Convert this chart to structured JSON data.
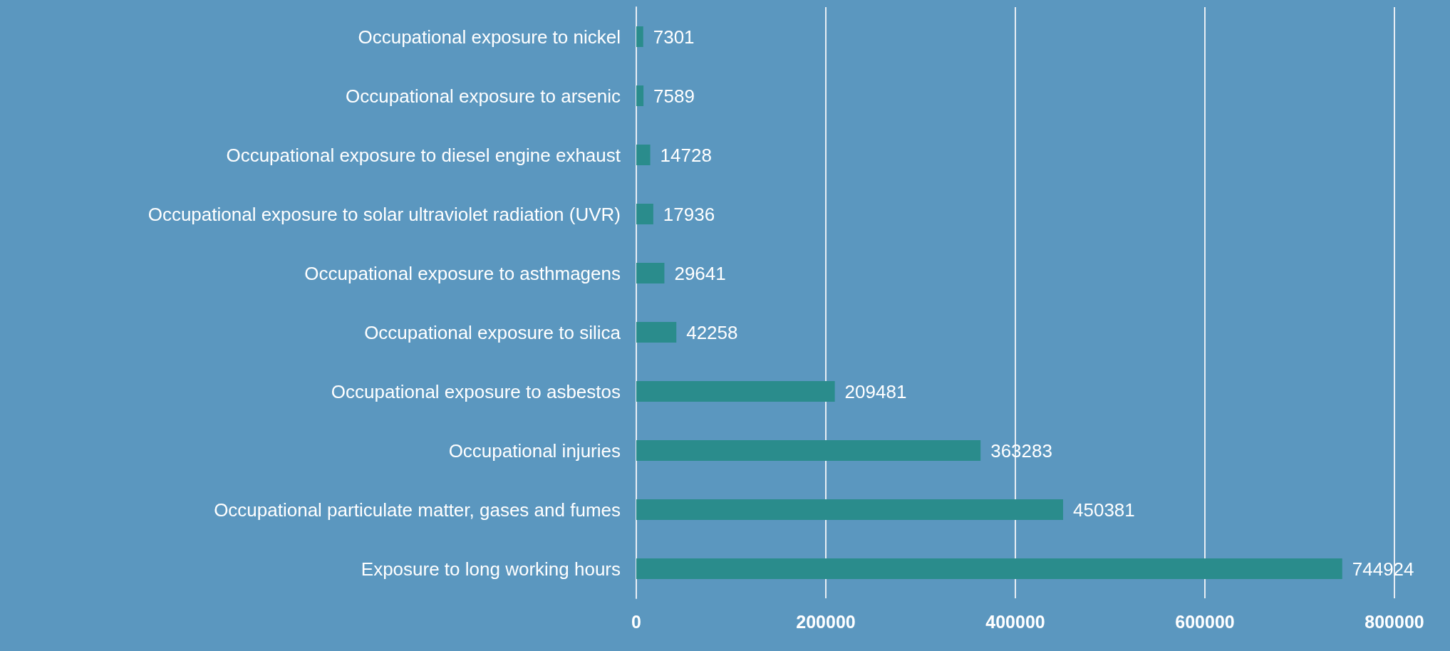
{
  "chart_data": {
    "type": "bar",
    "orientation": "horizontal",
    "categories": [
      "Occupational exposure to nickel",
      "Occupational exposure to arsenic",
      "Occupational exposure to diesel engine exhaust",
      "Occupational exposure to solar ultraviolet radiation (UVR)",
      "Occupational exposure to asthmagens",
      "Occupational exposure to silica",
      "Occupational exposure to asbestos",
      "Occupational injuries",
      "Occupational particulate matter, gases and fumes",
      "Exposure to long working hours"
    ],
    "values": [
      7301,
      7589,
      14728,
      17936,
      29641,
      42258,
      209481,
      363283,
      450381,
      744924
    ],
    "color": "#2a8c8c",
    "xlim": [
      0,
      800000
    ],
    "xticks": [
      0,
      200000,
      400000,
      600000,
      800000
    ],
    "grid": "x",
    "data_labels": true
  }
}
